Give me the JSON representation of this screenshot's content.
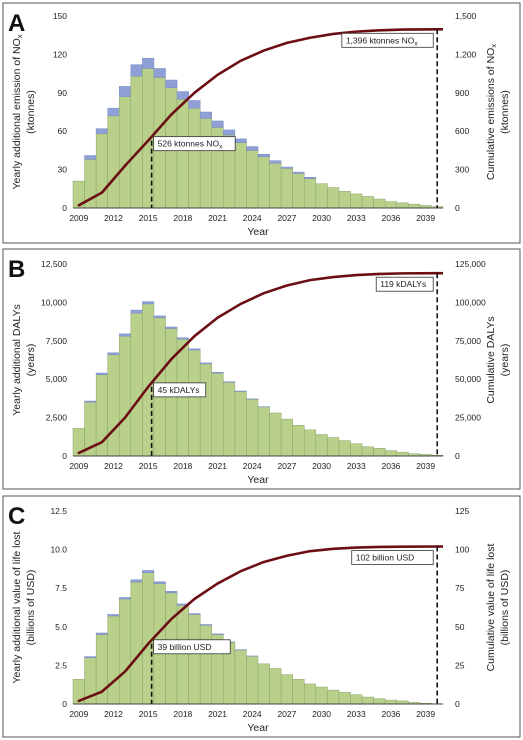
{
  "chart_data": [
    {
      "type": "bar",
      "panel_label": "A",
      "x": [
        2009,
        2010,
        2011,
        2012,
        2013,
        2014,
        2015,
        2016,
        2017,
        2018,
        2019,
        2020,
        2021,
        2022,
        2023,
        2024,
        2025,
        2026,
        2027,
        2028,
        2029,
        2030,
        2031,
        2032,
        2033,
        2034,
        2035,
        2036,
        2037,
        2038,
        2039,
        2040
      ],
      "x_tick_labels": [
        "2009",
        "2012",
        "2015",
        "2018",
        "2021",
        "2024",
        "2027",
        "2030",
        "2033",
        "2036",
        "2039"
      ],
      "series": [
        {
          "type": "bar",
          "stack": "base",
          "color": "#b8d08a",
          "values": [
            21,
            38,
            58,
            72,
            87,
            103,
            109,
            102,
            94,
            85,
            78,
            70,
            63,
            57,
            51,
            45,
            40,
            35,
            31,
            27,
            23,
            19,
            16,
            13,
            11,
            9,
            7,
            5,
            4,
            3,
            2,
            1
          ]
        },
        {
          "type": "bar",
          "stack": "top",
          "color": "#8ea0d6",
          "values": [
            0,
            3,
            4,
            6,
            8,
            9,
            8,
            7,
            6,
            6,
            6,
            5,
            5,
            4,
            3,
            3,
            2,
            2,
            1,
            1,
            1,
            0,
            0,
            0,
            0,
            0,
            0,
            0,
            0,
            0,
            0,
            0
          ]
        },
        {
          "type": "line",
          "axis": "right",
          "color": "#6b0f15",
          "x": [
            2009,
            2011,
            2013,
            2015,
            2017,
            2019,
            2021,
            2023,
            2025,
            2027,
            2029,
            2031,
            2033,
            2035,
            2037,
            2040
          ],
          "values": [
            21,
            120,
            330,
            526,
            730,
            900,
            1040,
            1150,
            1230,
            1290,
            1330,
            1360,
            1378,
            1388,
            1394,
            1396
          ]
        }
      ],
      "xlabel": "Year",
      "ylabel_left": [
        "Yearly additional emission of NO",
        "x",
        "(ktonnes)"
      ],
      "ylabel_right": [
        "Cumulative emissions of NO",
        "x",
        "(ktonnes)"
      ],
      "ylim_left": [
        0,
        150
      ],
      "ylim_right": [
        0,
        1500
      ],
      "y_ticks_left": [
        "0",
        "30",
        "60",
        "90",
        "120",
        "150"
      ],
      "y_ticks_right": [
        "0",
        "300",
        "600",
        "900",
        "1,200",
        "1,500"
      ],
      "annotations": [
        {
          "text": "526 ktonnes NO",
          "sub": "x",
          "at_x": 2015.3,
          "at_y_right": 526
        },
        {
          "text": "1,396 ktonnes NO",
          "sub": "x",
          "at_x": 2040,
          "at_y_right": 1396
        }
      ]
    },
    {
      "type": "bar",
      "panel_label": "B",
      "x": [
        2009,
        2010,
        2011,
        2012,
        2013,
        2014,
        2015,
        2016,
        2017,
        2018,
        2019,
        2020,
        2021,
        2022,
        2023,
        2024,
        2025,
        2026,
        2027,
        2028,
        2029,
        2030,
        2031,
        2032,
        2033,
        2034,
        2035,
        2036,
        2037,
        2038,
        2039,
        2040
      ],
      "x_tick_labels": [
        "2009",
        "2012",
        "2015",
        "2018",
        "2021",
        "2024",
        "2027",
        "2030",
        "2033",
        "2036",
        "2039"
      ],
      "series": [
        {
          "type": "bar",
          "stack": "base",
          "color": "#b8d08a",
          "values": [
            1800,
            3500,
            5300,
            6600,
            7800,
            9300,
            9900,
            9000,
            8300,
            7600,
            6900,
            6000,
            5400,
            4800,
            4200,
            3700,
            3200,
            2800,
            2400,
            2000,
            1700,
            1400,
            1200,
            1000,
            800,
            600,
            500,
            350,
            250,
            150,
            100,
            50
          ]
        },
        {
          "type": "bar",
          "stack": "top",
          "color": "#8ea0d6",
          "values": [
            0,
            80,
            100,
            120,
            150,
            200,
            150,
            120,
            100,
            100,
            80,
            60,
            50,
            40,
            30,
            20,
            10,
            0,
            0,
            0,
            0,
            0,
            0,
            0,
            0,
            0,
            0,
            0,
            0,
            0,
            0,
            0
          ]
        },
        {
          "type": "line",
          "axis": "right",
          "color": "#6b0f15",
          "x": [
            2009,
            2011,
            2013,
            2015,
            2017,
            2019,
            2021,
            2023,
            2025,
            2027,
            2029,
            2031,
            2033,
            2035,
            2037,
            2040
          ],
          "values": [
            2000,
            9000,
            25000,
            45000,
            63000,
            78000,
            90000,
            99000,
            106000,
            111000,
            114500,
            116500,
            117800,
            118500,
            118900,
            119000
          ]
        }
      ],
      "xlabel": "Year",
      "ylabel_left": [
        "Yearly additional DALYs",
        "(years)"
      ],
      "ylabel_right": [
        "Cumulative DALYs",
        "(years)"
      ],
      "ylim_left": [
        0,
        12500
      ],
      "ylim_right": [
        0,
        125000
      ],
      "y_ticks_left": [
        "0",
        "2,500",
        "5,000",
        "7,500",
        "10,000",
        "12,500"
      ],
      "y_ticks_right": [
        "0",
        "25,000",
        "50,000",
        "75,000",
        "100,000",
        "125,000"
      ],
      "annotations": [
        {
          "text": "45 kDALYs",
          "at_x": 2015.3,
          "at_y_right": 45000
        },
        {
          "text": "119 kDALYs",
          "at_x": 2040,
          "at_y_right": 119000
        }
      ]
    },
    {
      "type": "bar",
      "panel_label": "C",
      "x": [
        2009,
        2010,
        2011,
        2012,
        2013,
        2014,
        2015,
        2016,
        2017,
        2018,
        2019,
        2020,
        2021,
        2022,
        2023,
        2024,
        2025,
        2026,
        2027,
        2028,
        2029,
        2030,
        2031,
        2032,
        2033,
        2034,
        2035,
        2036,
        2037,
        2038,
        2039,
        2040
      ],
      "x_tick_labels": [
        "2009",
        "2012",
        "2015",
        "2018",
        "2021",
        "2024",
        "2027",
        "2030",
        "2033",
        "2036",
        "2039"
      ],
      "series": [
        {
          "type": "bar",
          "stack": "base",
          "color": "#b8d08a",
          "values": [
            1.6,
            3.0,
            4.5,
            5.7,
            6.8,
            7.9,
            8.5,
            7.8,
            7.2,
            6.4,
            5.8,
            5.1,
            4.5,
            4.0,
            3.5,
            3.1,
            2.6,
            2.3,
            1.9,
            1.6,
            1.3,
            1.1,
            0.9,
            0.75,
            0.6,
            0.45,
            0.35,
            0.25,
            0.2,
            0.1,
            0.05,
            0.02
          ]
        },
        {
          "type": "bar",
          "stack": "top",
          "color": "#8ea0d6",
          "values": [
            0,
            0.07,
            0.1,
            0.1,
            0.1,
            0.15,
            0.15,
            0.12,
            0.1,
            0.08,
            0.06,
            0.05,
            0.04,
            0.03,
            0.02,
            0.01,
            0,
            0,
            0,
            0,
            0,
            0,
            0,
            0,
            0,
            0,
            0,
            0,
            0,
            0,
            0,
            0
          ]
        },
        {
          "type": "line",
          "axis": "right",
          "color": "#6b0f15",
          "x": [
            2009,
            2011,
            2013,
            2015,
            2017,
            2019,
            2021,
            2023,
            2025,
            2027,
            2029,
            2031,
            2033,
            2035,
            2037,
            2040
          ],
          "values": [
            2,
            8,
            21,
            39,
            55,
            68,
            78,
            86,
            92,
            96,
            99,
            100.5,
            101.3,
            101.7,
            101.9,
            102
          ]
        }
      ],
      "xlabel": "Year",
      "ylabel_left": [
        "Yearly additional value of life lost",
        "(billions of USD)"
      ],
      "ylabel_right": [
        "Cumulative value of life lost",
        "(billions of USD)"
      ],
      "ylim_left": [
        0,
        12.5
      ],
      "ylim_right": [
        0,
        125
      ],
      "y_ticks_left": [
        "0",
        "2.5",
        "5.0",
        "7.5",
        "10.0",
        "12.5"
      ],
      "y_ticks_right": [
        "0",
        "25",
        "50",
        "75",
        "100",
        "125"
      ],
      "annotations": [
        {
          "text": "39 billion USD",
          "at_x": 2015.3,
          "at_y_right": 39
        },
        {
          "text": "102 billion USD",
          "at_x": 2040,
          "at_y_right": 102
        }
      ]
    }
  ]
}
